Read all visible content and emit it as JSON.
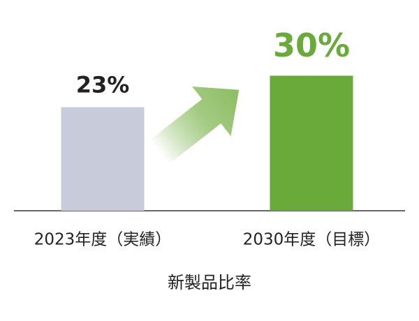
{
  "chart_data": {
    "type": "bar",
    "categories": [
      "2023年度（実績）",
      "2030年度（目標）"
    ],
    "values": [
      23,
      30
    ],
    "value_labels": [
      "23%",
      "30%"
    ],
    "colors": [
      "#c8cbd9",
      "#6aaa3a"
    ],
    "label_colors": [
      "#222222",
      "#6aaa3a"
    ],
    "x_label": "新製品比率"
  }
}
